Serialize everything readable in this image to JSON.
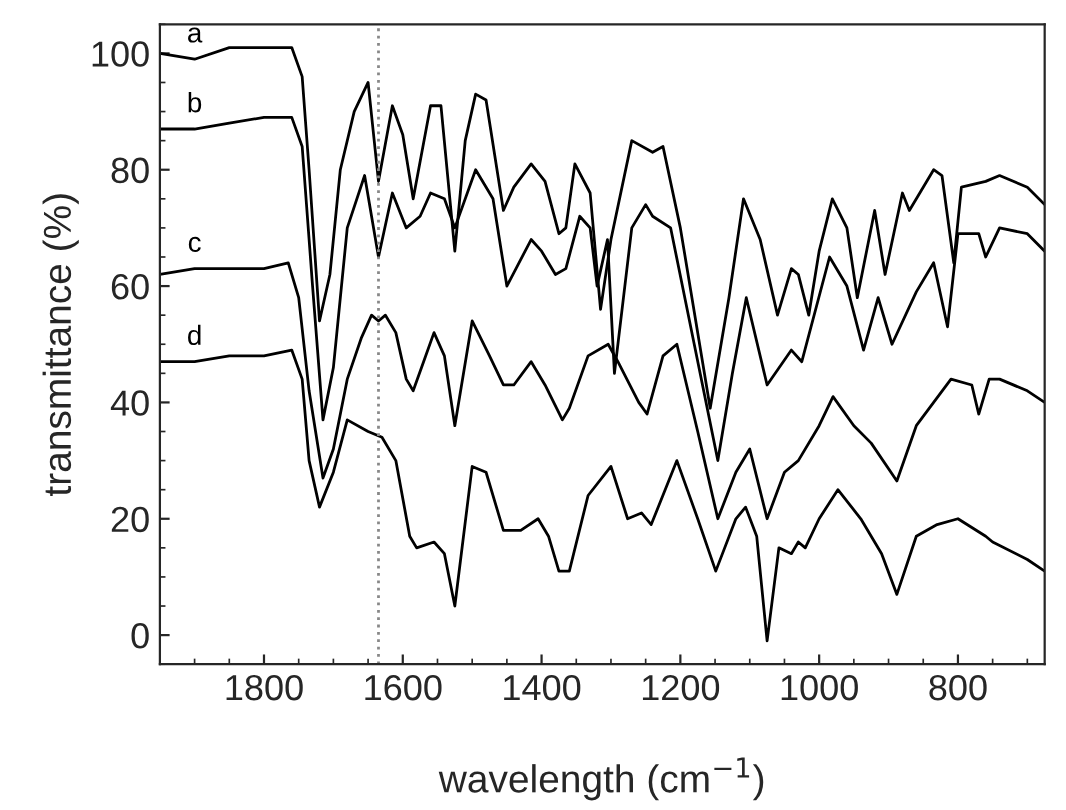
{
  "chart_data": {
    "type": "line",
    "xlabel": "wavelength (cm$^{−1}$)",
    "ylabel": "transmittance (%)",
    "xlim": [
      1950,
      675
    ],
    "ylim": [
      -5,
      105
    ],
    "xticks": [
      1800,
      1600,
      1400,
      1200,
      1000,
      800
    ],
    "yticks": [
      0,
      20,
      40,
      60,
      80,
      100
    ],
    "grid": false,
    "legend": false,
    "marker": "none",
    "line_style": "solid",
    "ref_lines": [
      {
        "axis": "x",
        "value": 1635,
        "label": null,
        "color": "#888888",
        "line_style": "dotted"
      }
    ],
    "series": [
      {
        "name": "a",
        "color": "#000000",
        "x": [
          1950,
          1900,
          1850,
          1800,
          1760,
          1745,
          1735,
          1720,
          1705,
          1690,
          1670,
          1650,
          1635,
          1615,
          1600,
          1585,
          1560,
          1545,
          1525,
          1510,
          1495,
          1480,
          1455,
          1440,
          1415,
          1395,
          1375,
          1365,
          1352,
          1330,
          1315,
          1300,
          1270,
          1240,
          1225,
          1200,
          1157,
          1130,
          1109,
          1085,
          1060,
          1040,
          1030,
          1015,
          1000,
          981,
          960,
          945,
          920,
          905,
          880,
          870,
          835,
          823,
          806,
          795,
          760,
          740,
          700,
          675
        ],
        "values": [
          100,
          99,
          101,
          101,
          101,
          96,
          80,
          54,
          62,
          80,
          90,
          95,
          78,
          91,
          86,
          75,
          91,
          91,
          66,
          85,
          93,
          92,
          73,
          77,
          81,
          78,
          69,
          70,
          81,
          76,
          56,
          68,
          85,
          83,
          84,
          70,
          39,
          58,
          75,
          68,
          55,
          63,
          62,
          55,
          66,
          75,
          70,
          58,
          73,
          62,
          76,
          73,
          80,
          79,
          64,
          77,
          78,
          79,
          77,
          74
        ]
      },
      {
        "name": "b",
        "color": "#000000",
        "x": [
          1950,
          1900,
          1850,
          1800,
          1760,
          1745,
          1730,
          1715,
          1700,
          1680,
          1655,
          1635,
          1615,
          1595,
          1575,
          1560,
          1540,
          1525,
          1495,
          1470,
          1450,
          1415,
          1400,
          1380,
          1365,
          1345,
          1330,
          1320,
          1305,
          1295,
          1270,
          1250,
          1240,
          1214,
          1180,
          1146,
          1125,
          1105,
          1075,
          1040,
          1025,
          985,
          960,
          936,
          915,
          895,
          860,
          835,
          815,
          800,
          770,
          760,
          740,
          700,
          675
        ],
        "values": [
          87,
          87,
          88,
          89,
          89,
          84,
          60,
          37,
          46,
          70,
          79,
          65,
          76,
          70,
          72,
          76,
          75,
          70,
          80,
          75,
          60,
          68,
          66,
          62,
          63,
          72,
          70,
          60,
          68,
          45,
          70,
          74,
          72,
          70,
          50,
          30,
          45,
          58,
          43,
          49,
          47,
          65,
          60,
          49,
          58,
          50,
          59,
          64,
          53,
          69,
          69,
          65,
          70,
          69,
          66
        ]
      },
      {
        "name": "c",
        "color": "#000000",
        "x": [
          1950,
          1900,
          1850,
          1800,
          1765,
          1750,
          1735,
          1715,
          1700,
          1680,
          1660,
          1645,
          1635,
          1625,
          1610,
          1595,
          1585,
          1570,
          1555,
          1540,
          1525,
          1500,
          1475,
          1455,
          1440,
          1415,
          1395,
          1370,
          1360,
          1333,
          1304,
          1290,
          1260,
          1248,
          1225,
          1205,
          1175,
          1146,
          1120,
          1100,
          1075,
          1050,
          1030,
          1000,
          980,
          950,
          925,
          888,
          860,
          835,
          810,
          780,
          770,
          755,
          740,
          700,
          675
        ],
        "values": [
          62,
          63,
          63,
          63,
          64,
          58,
          42,
          27,
          32,
          44,
          51,
          55,
          54,
          55,
          52,
          44,
          42,
          47,
          52,
          48,
          36,
          54,
          48,
          43,
          43,
          47,
          43,
          37,
          39,
          48,
          50,
          47,
          40,
          38,
          48,
          50,
          35,
          20,
          28,
          32,
          20,
          28,
          30,
          36,
          41,
          36,
          33,
          26.5,
          36,
          40,
          44,
          43,
          38,
          44,
          44,
          42,
          40
        ]
      },
      {
        "name": "d",
        "color": "#000000",
        "x": [
          1950,
          1900,
          1850,
          1800,
          1760,
          1745,
          1735,
          1720,
          1700,
          1680,
          1650,
          1630,
          1610,
          1590,
          1580,
          1555,
          1540,
          1525,
          1500,
          1480,
          1455,
          1430,
          1405,
          1390,
          1375,
          1360,
          1333,
          1300,
          1276,
          1256,
          1242,
          1205,
          1175,
          1149,
          1120,
          1106,
          1090,
          1075,
          1058,
          1040,
          1030,
          1020,
          1000,
          973,
          940,
          910,
          888,
          860,
          830,
          800,
          760,
          750,
          700,
          675
        ],
        "values": [
          47,
          47,
          48,
          48,
          49,
          44,
          30,
          22,
          28,
          37,
          35,
          34,
          30,
          17,
          15,
          16,
          14,
          5,
          29,
          28,
          18,
          18,
          20,
          17,
          11,
          11,
          24,
          29,
          20,
          21,
          19,
          30,
          20,
          11,
          20,
          22,
          17,
          -1,
          15,
          14,
          16,
          15,
          20,
          25,
          20,
          14,
          7,
          17,
          19,
          20,
          17,
          16,
          13,
          11
        ]
      }
    ]
  }
}
